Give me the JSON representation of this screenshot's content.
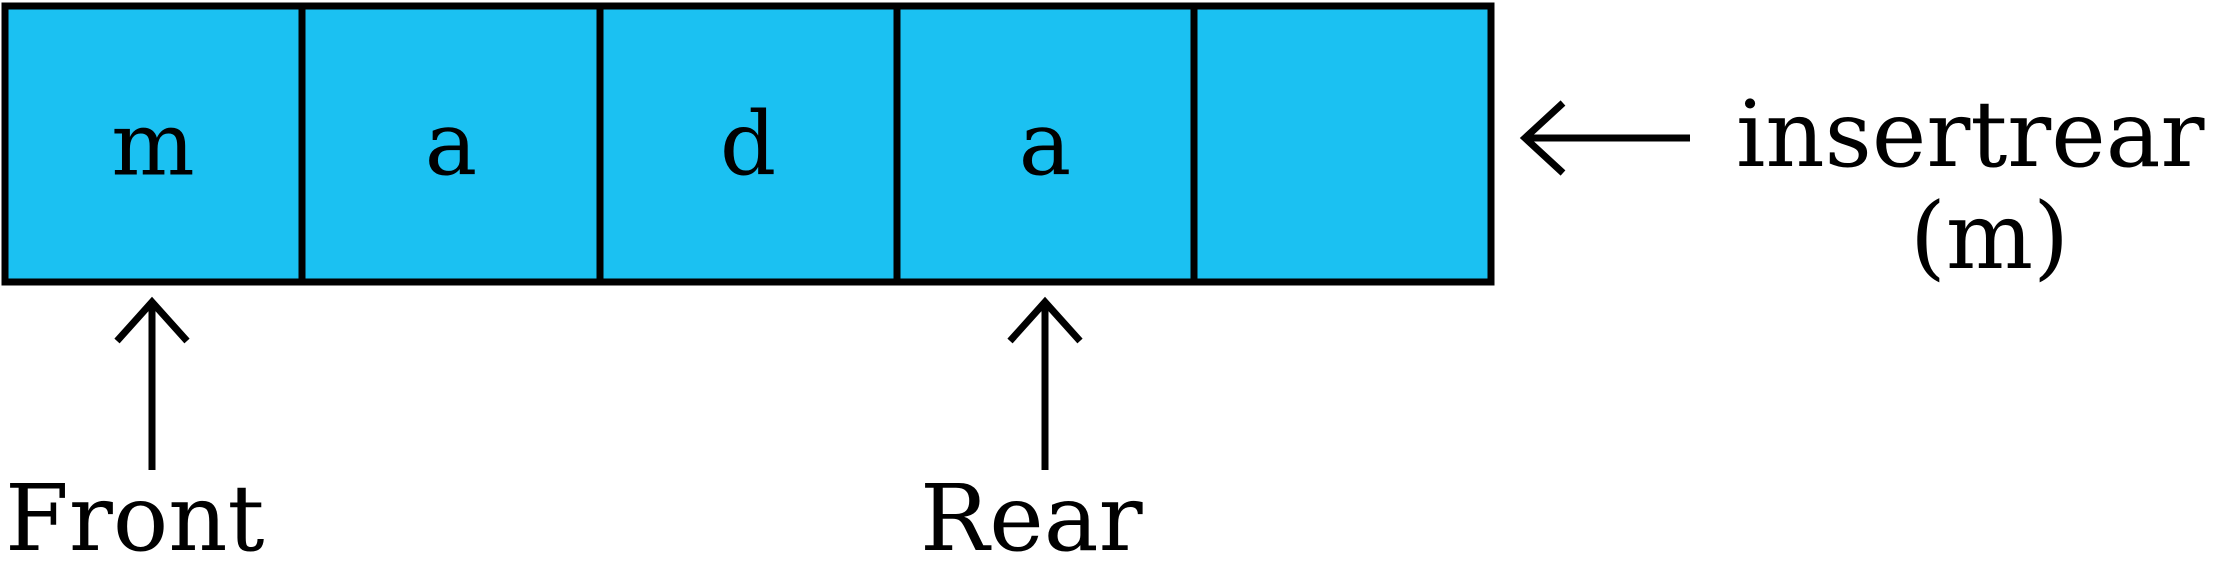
{
  "queue": {
    "cells": [
      "m",
      "a",
      "d",
      "a",
      ""
    ],
    "fill_color": "#1BC1F2",
    "border_color": "#000000"
  },
  "pointers": {
    "front_label": "Front",
    "rear_label": "Rear"
  },
  "operation": {
    "line1": "insertrear",
    "line2": "(m)"
  }
}
